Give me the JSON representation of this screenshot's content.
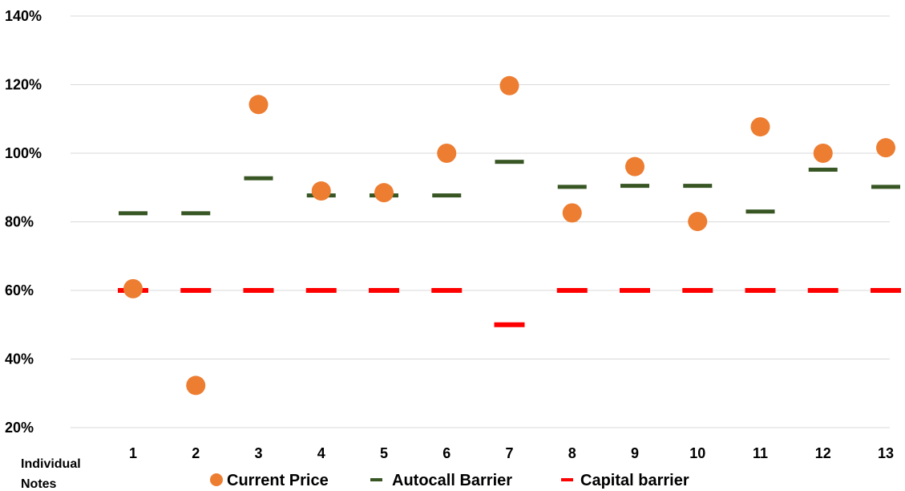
{
  "chart_data": {
    "type": "scatter",
    "title": "",
    "xlabel": "Individual Notes",
    "ylabel": "",
    "categories": [
      "1",
      "2",
      "3",
      "4",
      "5",
      "6",
      "7",
      "8",
      "9",
      "10",
      "11",
      "12",
      "13"
    ],
    "ylim": [
      0.2,
      1.4
    ],
    "yticks": [
      "20%",
      "40%",
      "60%",
      "80%",
      "100%",
      "120%",
      "140%"
    ],
    "grid": true,
    "legend_position": "bottom",
    "series": [
      {
        "name": "Current Price",
        "marker": "circle",
        "color": "#ED7D31",
        "values": [
          0.605,
          0.323,
          1.142,
          0.89,
          0.885,
          1.0,
          1.197,
          0.826,
          0.961,
          0.801,
          1.077,
          1.0,
          1.016
        ]
      },
      {
        "name": "Autocall Barrier",
        "marker": "dash",
        "color": "#375623",
        "values": [
          0.825,
          0.825,
          0.927,
          0.877,
          0.877,
          0.877,
          0.975,
          0.902,
          0.905,
          0.905,
          0.83,
          0.952,
          0.902
        ]
      },
      {
        "name": "Capital barrier",
        "marker": "dash",
        "color": "#FF0000",
        "values": [
          0.6,
          0.6,
          0.6,
          0.6,
          0.6,
          0.6,
          0.5,
          0.6,
          0.6,
          0.6,
          0.6,
          0.6,
          0.6
        ]
      }
    ]
  }
}
